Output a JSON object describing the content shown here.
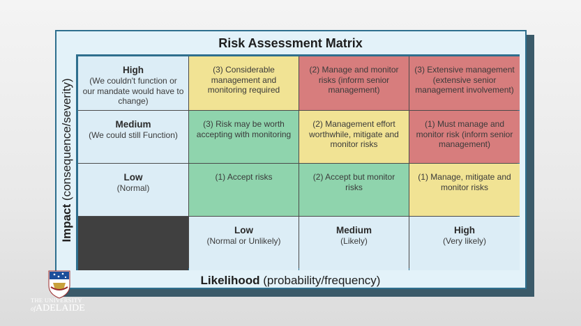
{
  "title": "Risk Assessment Matrix",
  "y_axis": {
    "label_bold": "Impact",
    "label_rest": " (consequence/severity)"
  },
  "x_axis": {
    "label_bold": "Likelihood",
    "label_rest": " (probability/frequency)"
  },
  "rows": [
    {
      "header": "High",
      "subheader": "(We couldn't function or our mandate would have to change)",
      "cells": [
        "(3) Considerable management and monitoring required",
        "(2) Manage and monitor risks (inform senior management)",
        "(3) Extensive management (extensive senior management involvement)"
      ],
      "colors": [
        "#f1e394",
        "#d77d7d",
        "#d77d7d"
      ]
    },
    {
      "header": "Medium",
      "subheader": "(We could still Function)",
      "cells": [
        "(3) Risk may be worth accepting with monitoring",
        "(2) Management effort worthwhile, mitigate and monitor risks",
        "(1) Must manage and monitor risk (inform senior management)"
      ],
      "colors": [
        "#8fd4ad",
        "#f1e394",
        "#d77d7d"
      ]
    },
    {
      "header": "Low",
      "subheader": "(Normal)",
      "cells": [
        "(1) Accept risks",
        "(2) Accept but monitor risks",
        "(1) Manage, mitigate and monitor risks"
      ],
      "colors": [
        "#8fd4ad",
        "#8fd4ad",
        "#f1e394"
      ]
    }
  ],
  "columns": [
    {
      "header": "Low",
      "subheader": "(Normal or Unlikely)"
    },
    {
      "header": "Medium",
      "subheader": "(Likely)"
    },
    {
      "header": "High",
      "subheader": "(Very likely)"
    }
  ],
  "logo": {
    "line1": "THE UNIVERSITY",
    "line2_prefix": "of",
    "line2_main": "ADELAIDE"
  }
}
